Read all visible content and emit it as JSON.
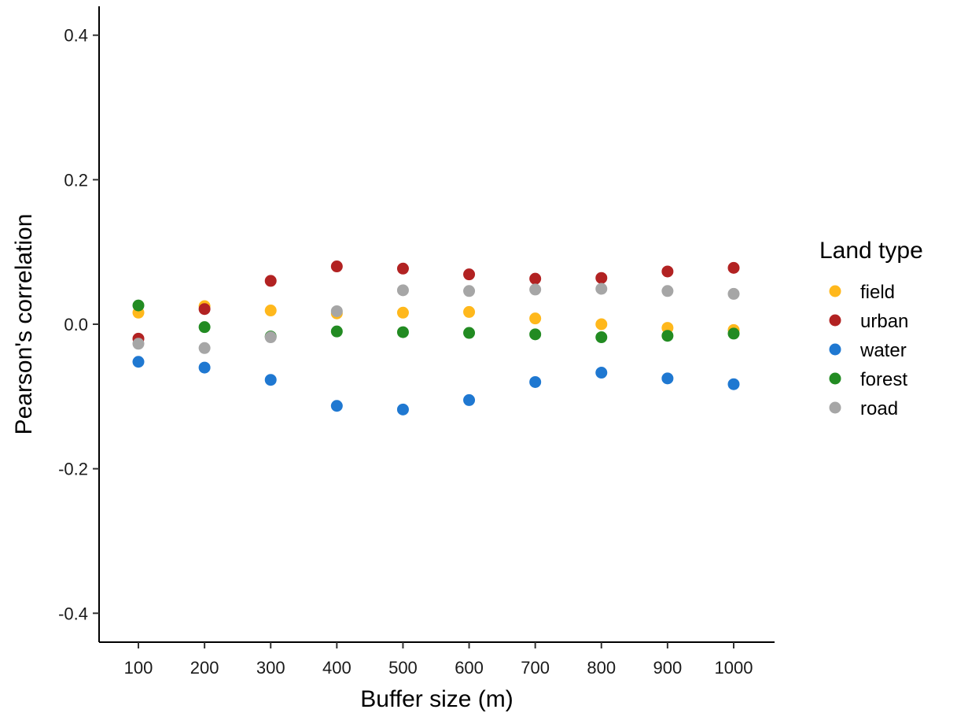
{
  "chart_data": {
    "type": "scatter",
    "xlabel": "Buffer size (m)",
    "ylabel": "Pearson's correlation",
    "categories": [
      "100",
      "200",
      "300",
      "400",
      "500",
      "600",
      "700",
      "800",
      "900",
      "1000"
    ],
    "ylim": [
      -0.44,
      0.44
    ],
    "y_ticks": [
      "-0.4",
      "-0.2",
      "0.0",
      "0.2",
      "0.4"
    ],
    "y_tick_values": [
      -0.4,
      -0.2,
      0.0,
      0.2,
      0.4
    ],
    "grid": false,
    "legend": {
      "title": "Land type",
      "placement": "right"
    },
    "series": [
      {
        "name": "field",
        "color": "#FFB81C",
        "values": [
          0.016,
          0.025,
          0.019,
          0.015,
          0.016,
          0.017,
          0.008,
          0.0,
          -0.005,
          -0.008
        ]
      },
      {
        "name": "urban",
        "color": "#B22222",
        "values": [
          -0.02,
          0.021,
          0.06,
          0.08,
          0.077,
          0.069,
          0.063,
          0.064,
          0.073,
          0.078
        ]
      },
      {
        "name": "water",
        "color": "#1F78D1",
        "values": [
          -0.052,
          -0.06,
          -0.077,
          -0.113,
          -0.118,
          -0.105,
          -0.08,
          -0.067,
          -0.075,
          -0.083
        ]
      },
      {
        "name": "forest",
        "color": "#228B22",
        "values": [
          0.026,
          -0.004,
          -0.017,
          -0.01,
          -0.011,
          -0.012,
          -0.014,
          -0.018,
          -0.016,
          -0.013
        ]
      },
      {
        "name": "road",
        "color": "#A6A6A6",
        "values": [
          -0.027,
          -0.033,
          -0.018,
          0.018,
          0.047,
          0.046,
          0.048,
          0.049,
          0.046,
          0.042
        ]
      }
    ]
  }
}
